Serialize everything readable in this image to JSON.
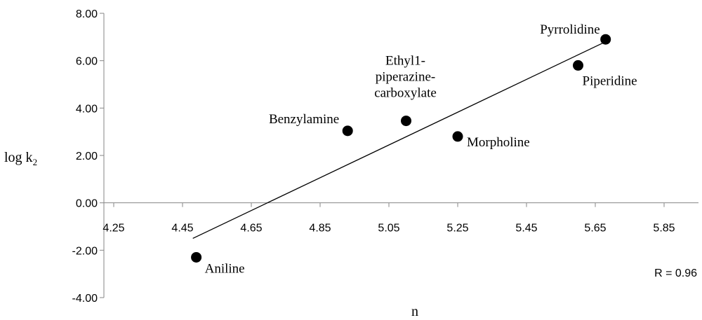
{
  "chart_data": {
    "type": "scatter",
    "xlabel": "n",
    "ylabel": "log k",
    "ylabel_subscript": "2",
    "xlim": [
      4.25,
      5.95
    ],
    "ylim": [
      -4.0,
      8.0
    ],
    "x_ticks": [
      "4.25",
      "4.45",
      "4.65",
      "4.85",
      "5.05",
      "5.25",
      "5.45",
      "5.65",
      "5.85"
    ],
    "y_ticks": [
      "-4.00",
      "-2.00",
      "0.00",
      "2.00",
      "4.00",
      "6.00",
      "8.00"
    ],
    "points": [
      {
        "name": "Aniline",
        "label_lines": [
          "Aniline"
        ],
        "x": 4.49,
        "y": -2.3
      },
      {
        "name": "Benzylamine",
        "label_lines": [
          "Benzylamine"
        ],
        "x": 4.93,
        "y": 3.04
      },
      {
        "name": "Ethyl 1-piperazine-carboxylate",
        "label_lines": [
          "Ethyl1-",
          "piperazine-",
          "carboxylate"
        ],
        "x": 5.1,
        "y": 3.46
      },
      {
        "name": "Morpholine",
        "label_lines": [
          "Morpholine"
        ],
        "x": 5.25,
        "y": 2.8
      },
      {
        "name": "Piperidine",
        "label_lines": [
          "Piperidine"
        ],
        "x": 5.6,
        "y": 5.8
      },
      {
        "name": "Pyrrolidine",
        "label_lines": [
          "Pyrrolidine"
        ],
        "x": 5.68,
        "y": 6.9
      }
    ],
    "trendline": {
      "x": [
        4.48,
        5.68
      ],
      "y": [
        -1.5,
        6.8
      ]
    },
    "annotation": "R = 0.96",
    "grid": false,
    "legend": "none"
  }
}
